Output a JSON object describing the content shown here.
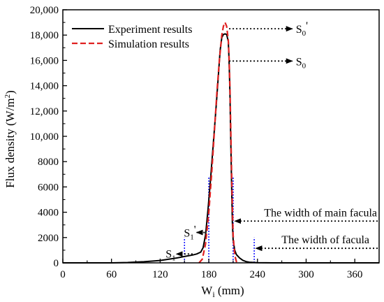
{
  "chart_data": {
    "type": "line",
    "xlabel": {
      "main": "W",
      "sub": "i",
      "rest": " (mm)"
    },
    "ylabel": {
      "main": "Flux density (W/m",
      "sup": "2",
      "rest": ")"
    },
    "xlim": [
      0,
      390
    ],
    "ylim": [
      0,
      20000
    ],
    "x_ticks": [
      0,
      60,
      120,
      180,
      240,
      300,
      360
    ],
    "y_ticks": [
      0,
      2000,
      4000,
      6000,
      8000,
      10000,
      12000,
      14000,
      16000,
      18000,
      20000
    ],
    "y_tick_labels": [
      "0",
      "2000",
      "4000",
      "6000",
      "8000",
      "10,000",
      "12,000",
      "14,000",
      "16,000",
      "18,000",
      "20,000"
    ],
    "grid": false,
    "legend_position": "top-left",
    "series": [
      {
        "name": "Experiment results",
        "color": "#000000",
        "style": "solid",
        "x": [
          0,
          60,
          80,
          90,
          100,
          110,
          120,
          130,
          140,
          150,
          160,
          165,
          170,
          173,
          176,
          179,
          182,
          185,
          188,
          190,
          192,
          194,
          196,
          198,
          200,
          202,
          204,
          205,
          206,
          207,
          208,
          209,
          210,
          212,
          214,
          218,
          222,
          226,
          230,
          240,
          260,
          390
        ],
        "y": [
          0,
          0,
          30,
          60,
          90,
          140,
          190,
          280,
          380,
          500,
          620,
          700,
          850,
          1200,
          2200,
          4200,
          6500,
          9000,
          11500,
          13200,
          15000,
          16800,
          17800,
          18050,
          18100,
          18050,
          17500,
          16000,
          13500,
          10000,
          6500,
          3200,
          1800,
          1000,
          650,
          380,
          200,
          100,
          50,
          10,
          0,
          0
        ]
      },
      {
        "name": "Simulation results",
        "color": "#e02020",
        "style": "dashed",
        "x": [
          168,
          172,
          176,
          180,
          184,
          187,
          190,
          193,
          196,
          198,
          200,
          202,
          204,
          205,
          206,
          207,
          208,
          209,
          210,
          212,
          214,
          218
        ],
        "y": [
          0,
          300,
          1500,
          4000,
          7500,
          10500,
          13500,
          16000,
          18000,
          18700,
          19000,
          18700,
          17600,
          16200,
          14000,
          11000,
          7500,
          4500,
          2200,
          600,
          100,
          0
        ]
      }
    ],
    "reference_lines": [
      {
        "name": "width-of-facula-left",
        "x": 150,
        "y_top": 2000,
        "color": "#1a1aff"
      },
      {
        "name": "width-of-facula-right",
        "x": 236,
        "y_top": 2000,
        "color": "#1a1aff"
      },
      {
        "name": "width-of-main-facula-left",
        "x": 180,
        "y_top": 6800,
        "color": "#1a1aff"
      },
      {
        "name": "width-of-main-facula-right",
        "x": 210,
        "y_top": 6800,
        "color": "#1a1aff"
      }
    ],
    "annotations": {
      "s0_prime": {
        "main": "S",
        "sub": "0",
        "mark": "'",
        "x": 205,
        "y": 18500,
        "tip_x": 283
      },
      "s0": {
        "main": "S",
        "sub": "0",
        "mark": "",
        "x": 205,
        "y": 15950,
        "tip_x": 283
      },
      "main_facula": {
        "text": "The width of main facula",
        "y": 3300,
        "tip_x": 212,
        "x_end": 390
      },
      "facula": {
        "text": "The width of facula",
        "y": 1150,
        "tip_x": 238,
        "x_end": 390
      },
      "s1_prime": {
        "main": "S",
        "sub": "1",
        "mark": "'",
        "y": 2400,
        "tip_x": 175,
        "label_x": 165
      },
      "s1": {
        "main": "S",
        "sub": "1",
        "mark": "",
        "y": 700,
        "tip_x": 150,
        "label_x": 140,
        "x_end": 160
      }
    }
  }
}
